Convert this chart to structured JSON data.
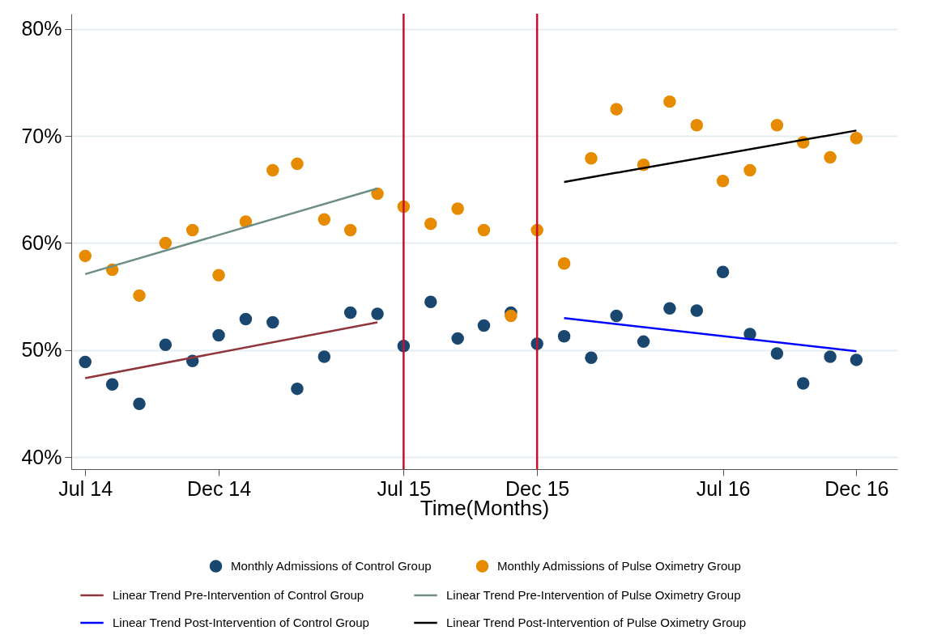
{
  "chart_data": {
    "type": "scatter",
    "xlabel": "Time(Months)",
    "x": [
      "2014-07",
      "2014-08",
      "2014-09",
      "2014-10",
      "2014-11",
      "2014-12",
      "2015-01",
      "2015-02",
      "2015-03",
      "2015-04",
      "2015-05",
      "2015-06",
      "2015-07",
      "2015-08",
      "2015-09",
      "2015-10",
      "2015-11",
      "2015-12",
      "2016-01",
      "2016-02",
      "2016-03",
      "2016-04",
      "2016-05",
      "2016-06",
      "2016-07",
      "2016-08",
      "2016-09",
      "2016-10",
      "2016-11",
      "2016-12"
    ],
    "series": [
      {
        "name": "Monthly Admissions of Control Group",
        "color": "#1a476f",
        "values": [
          48.9,
          46.8,
          45.0,
          50.5,
          49.0,
          51.4,
          52.9,
          52.6,
          46.4,
          49.4,
          53.5,
          53.4,
          50.4,
          54.5,
          51.1,
          52.3,
          53.5,
          50.6,
          51.3,
          49.3,
          53.2,
          50.8,
          53.9,
          53.7,
          57.3,
          51.5,
          49.7,
          46.9,
          49.4,
          49.1
        ]
      },
      {
        "name": "Monthly Admissions of Pulse Oximetry Group",
        "color": "#e68a00",
        "values": [
          58.8,
          57.5,
          55.1,
          60.0,
          61.2,
          57.0,
          62.0,
          66.8,
          67.4,
          62.2,
          61.2,
          64.6,
          63.4,
          61.8,
          63.2,
          61.2,
          53.2,
          61.2,
          58.1,
          67.9,
          72.5,
          67.3,
          73.2,
          71.0,
          65.8,
          66.8,
          71.0,
          69.4,
          68.0,
          69.8
        ]
      },
      {
        "name": "Linear Trend Pre-Intervention of Control Group",
        "type": "line",
        "marker": "none",
        "color": "#90353b",
        "x": [
          "2014-07",
          "2015-06"
        ],
        "values": [
          47.4,
          52.6
        ]
      },
      {
        "name": "Linear Trend Pre-Intervention of Pulse Oximetry Group",
        "type": "line",
        "marker": "none",
        "color": "#6e8e84",
        "x": [
          "2014-07",
          "2015-06"
        ],
        "values": [
          57.1,
          65.1
        ]
      },
      {
        "name": "Linear Trend Post-Intervention of Control Group",
        "type": "line",
        "marker": "none",
        "color": "#0000ff",
        "x": [
          "2016-01",
          "2016-12"
        ],
        "values": [
          53.0,
          49.9
        ]
      },
      {
        "name": "Linear Trend Post-Intervention of Pulse Oximetry Group",
        "type": "line",
        "marker": "none",
        "color": "#000000",
        "x": [
          "2016-01",
          "2016-12"
        ],
        "values": [
          65.7,
          70.5
        ]
      }
    ],
    "xlim": [
      "2014-06-15",
      "2017-01-17"
    ],
    "xticks": [
      {
        "value": "2014-07",
        "label": "Jul 14"
      },
      {
        "value": "2014-12",
        "label": "Dec 14"
      },
      {
        "value": "2015-07",
        "label": "Jul 15"
      },
      {
        "value": "2015-12",
        "label": "Dec 15"
      },
      {
        "value": "2016-07",
        "label": "Jul 16"
      },
      {
        "value": "2016-12",
        "label": "Dec 16"
      }
    ],
    "ylim": [
      38.9,
      81.4
    ],
    "yticks": [
      {
        "value": 40,
        "label": "40%"
      },
      {
        "value": 50,
        "label": "50%"
      },
      {
        "value": 60,
        "label": "60%"
      },
      {
        "value": 70,
        "label": "70%"
      },
      {
        "value": 80,
        "label": "80%"
      }
    ],
    "ref_lines": [
      {
        "axis": "x",
        "value": "2015-07",
        "color": "#c8102e"
      },
      {
        "axis": "x",
        "value": "2015-12",
        "color": "#c8102e"
      }
    ],
    "grid": "y",
    "marker": "circle",
    "line_style": "solid",
    "legend": "bottom"
  }
}
